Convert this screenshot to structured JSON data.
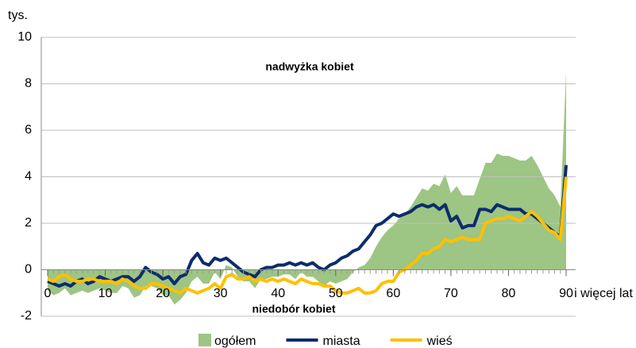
{
  "chart_data": {
    "type": "area-line",
    "y_unit": "tys.",
    "x_label": "i więcej lat",
    "annotations": [
      "nadwyżka kobiet",
      "niedobór kobiet"
    ],
    "x": [
      0,
      1,
      2,
      3,
      4,
      5,
      6,
      7,
      8,
      9,
      10,
      11,
      12,
      13,
      14,
      15,
      16,
      17,
      18,
      19,
      20,
      21,
      22,
      23,
      24,
      25,
      26,
      27,
      28,
      29,
      30,
      31,
      32,
      33,
      34,
      35,
      36,
      37,
      38,
      39,
      40,
      41,
      42,
      43,
      44,
      45,
      46,
      47,
      48,
      49,
      50,
      51,
      52,
      53,
      54,
      55,
      56,
      57,
      58,
      59,
      60,
      61,
      62,
      63,
      64,
      65,
      66,
      67,
      68,
      69,
      70,
      71,
      72,
      73,
      74,
      75,
      76,
      77,
      78,
      79,
      80,
      81,
      82,
      83,
      84,
      85,
      86,
      87,
      88,
      89,
      90
    ],
    "xlim": [
      0,
      90
    ],
    "xticks": [
      0,
      10,
      20,
      30,
      40,
      50,
      60,
      70,
      80,
      90
    ],
    "ylim": [
      -2,
      10
    ],
    "yticks": [
      -2,
      0,
      2,
      4,
      6,
      8,
      10
    ],
    "grid": true,
    "series": [
      {
        "name": "ogółem",
        "color": "#9dc583",
        "kind": "area",
        "values": [
          -0.9,
          -1.1,
          -1.0,
          -0.8,
          -1.1,
          -1.0,
          -0.9,
          -1.0,
          -0.9,
          -0.8,
          -0.9,
          -1.0,
          -1.0,
          -0.7,
          -0.8,
          -1.2,
          -1.1,
          -0.7,
          -0.7,
          -0.8,
          -1.1,
          -1.1,
          -1.5,
          -1.3,
          -1.0,
          -0.5,
          -0.3,
          -0.6,
          -0.6,
          -0.1,
          -0.4,
          0.2,
          0.1,
          -0.3,
          -0.5,
          -0.5,
          -0.8,
          -0.4,
          -0.4,
          -0.3,
          -0.3,
          -0.2,
          -0.2,
          -0.4,
          -0.1,
          -0.3,
          -0.3,
          -0.5,
          -0.7,
          -0.5,
          -0.6,
          -0.5,
          -0.4,
          -0.1,
          0.1,
          0.2,
          0.5,
          1.0,
          1.4,
          1.7,
          1.9,
          2.2,
          2.4,
          2.7,
          3.1,
          3.5,
          3.4,
          3.7,
          3.6,
          4.1,
          3.3,
          3.6,
          3.2,
          3.2,
          3.2,
          3.9,
          4.6,
          4.6,
          5.0,
          4.9,
          4.9,
          4.8,
          4.7,
          4.7,
          4.9,
          4.5,
          4.0,
          3.5,
          3.2,
          2.7,
          8.5
        ]
      },
      {
        "name": "miasta",
        "color": "#0d2c6c",
        "kind": "line",
        "values": [
          -0.5,
          -0.6,
          -0.7,
          -0.6,
          -0.7,
          -0.5,
          -0.4,
          -0.6,
          -0.5,
          -0.3,
          -0.4,
          -0.5,
          -0.4,
          -0.3,
          -0.3,
          -0.5,
          -0.3,
          0.1,
          -0.1,
          -0.2,
          -0.4,
          -0.3,
          -0.6,
          -0.3,
          -0.2,
          0.4,
          0.7,
          0.3,
          0.2,
          0.5,
          0.4,
          0.5,
          0.3,
          0.1,
          -0.1,
          -0.2,
          -0.3,
          0.0,
          0.1,
          0.1,
          0.2,
          0.2,
          0.3,
          0.2,
          0.3,
          0.2,
          0.3,
          0.1,
          0.0,
          0.2,
          0.3,
          0.5,
          0.6,
          0.8,
          0.9,
          1.2,
          1.5,
          1.9,
          2.0,
          2.2,
          2.4,
          2.3,
          2.4,
          2.5,
          2.7,
          2.8,
          2.7,
          2.8,
          2.6,
          2.8,
          2.1,
          2.3,
          1.8,
          1.9,
          1.9,
          2.6,
          2.6,
          2.5,
          2.8,
          2.7,
          2.6,
          2.6,
          2.6,
          2.4,
          2.4,
          2.2,
          2.0,
          1.8,
          1.6,
          1.4,
          4.5
        ]
      },
      {
        "name": "wieś",
        "color": "#ffc000",
        "kind": "line",
        "values": [
          -0.4,
          -0.5,
          -0.3,
          -0.2,
          -0.4,
          -0.5,
          -0.5,
          -0.4,
          -0.4,
          -0.5,
          -0.5,
          -0.5,
          -0.6,
          -0.4,
          -0.5,
          -0.7,
          -0.8,
          -0.8,
          -0.6,
          -0.6,
          -0.7,
          -0.8,
          -0.9,
          -1.0,
          -0.8,
          -0.9,
          -1.0,
          -0.9,
          -0.8,
          -0.6,
          -0.8,
          -0.3,
          -0.2,
          -0.4,
          -0.4,
          -0.3,
          -0.5,
          -0.4,
          -0.5,
          -0.4,
          -0.5,
          -0.4,
          -0.5,
          -0.6,
          -0.4,
          -0.5,
          -0.6,
          -0.6,
          -0.7,
          -0.7,
          -0.9,
          -1.0,
          -1.0,
          -0.9,
          -0.8,
          -1.0,
          -1.0,
          -0.9,
          -0.6,
          -0.5,
          -0.5,
          -0.1,
          0.0,
          0.2,
          0.4,
          0.7,
          0.7,
          0.9,
          1.0,
          1.3,
          1.2,
          1.3,
          1.4,
          1.3,
          1.3,
          1.3,
          2.0,
          2.1,
          2.2,
          2.2,
          2.3,
          2.2,
          2.1,
          2.3,
          2.5,
          2.3,
          2.0,
          1.7,
          1.6,
          1.3,
          4.0
        ]
      }
    ]
  }
}
